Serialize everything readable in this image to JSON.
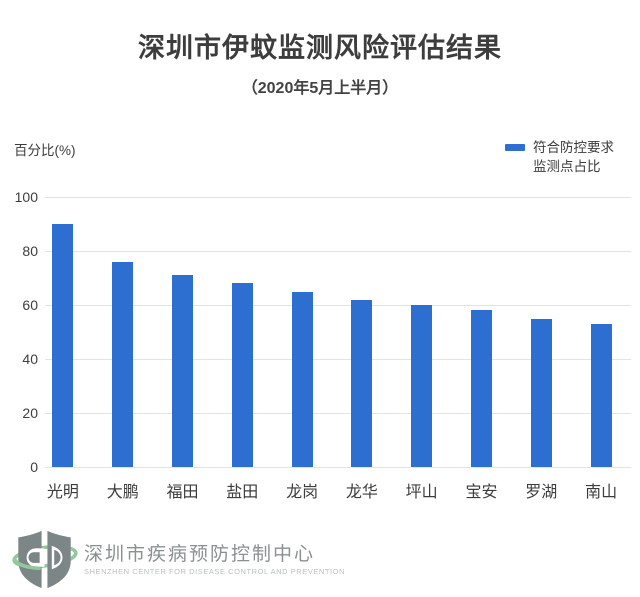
{
  "header": {
    "title": "深圳市伊蚊监测风险评估结果",
    "subtitle": "（2020年5月上半月）"
  },
  "axis": {
    "y_title": "百分比(%)"
  },
  "legend": {
    "line1": "符合防控要求",
    "line2": "监测点占比"
  },
  "chart_data": {
    "type": "bar",
    "title": "深圳市伊蚊监测风险评估结果",
    "subtitle": "（2020年5月上半月）",
    "ylabel": "百分比(%)",
    "categories": [
      "光明",
      "大鹏",
      "福田",
      "盐田",
      "龙岗",
      "龙华",
      "坪山",
      "宝安",
      "罗湖",
      "南山"
    ],
    "series": [
      {
        "name": "符合防控要求 监测点占比",
        "values": [
          90,
          76,
          71,
          68,
          65,
          62,
          60,
          58,
          55,
          53
        ]
      }
    ],
    "ylim": [
      0,
      100
    ],
    "yticks": [
      0,
      20,
      40,
      60,
      80,
      100
    ],
    "grid": true,
    "legend_position": "top-right",
    "bar_color": "#2d6ed1",
    "gridline_color": "#e3e3e3"
  },
  "footer": {
    "org_cn": "深圳市疾病预防控制中心",
    "org_en": "SHENZHEN CENTER FOR DISEASE CONTROL AND PREVENTION"
  },
  "colors": {
    "accent_blue": "#2d6ed1",
    "title_gray": "#3d3d3d",
    "footer_gray": "#8b9191",
    "logo_green": "#93c89e"
  }
}
